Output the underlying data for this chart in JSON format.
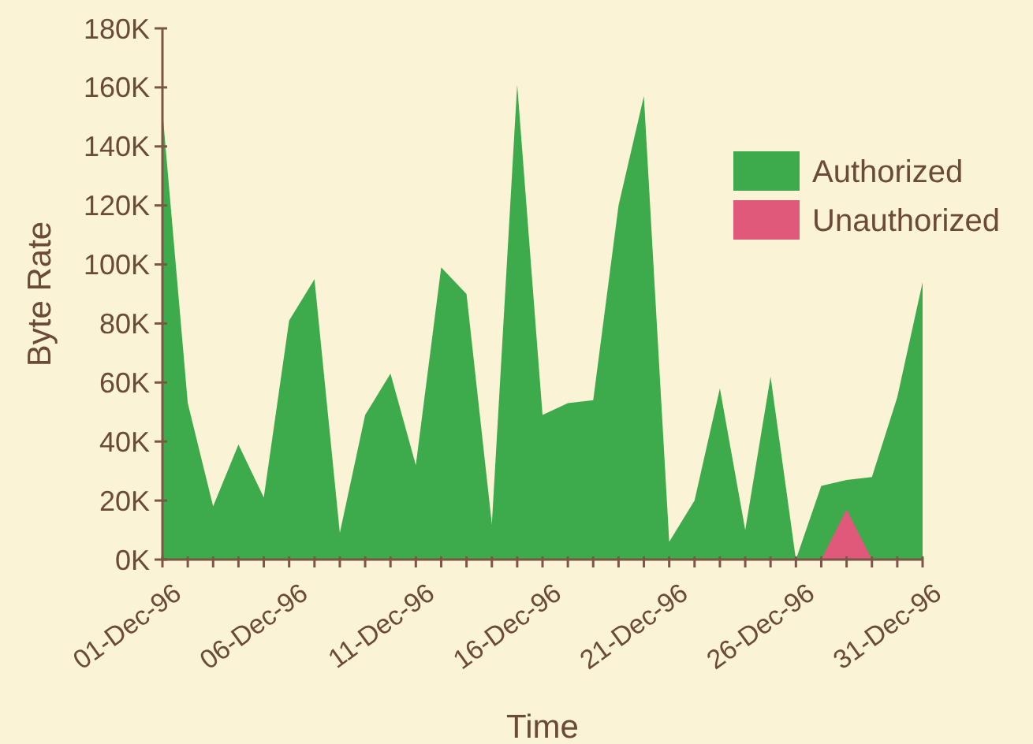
{
  "chart_data": {
    "type": "area",
    "xlabel": "Time",
    "ylabel": "Byte Rate",
    "legend": "top right",
    "x": [
      "1996-12-01",
      "1996-12-02",
      "1996-12-03",
      "1996-12-04",
      "1996-12-05",
      "1996-12-06",
      "1996-12-07",
      "1996-12-08",
      "1996-12-09",
      "1996-12-10",
      "1996-12-11",
      "1996-12-12",
      "1996-12-13",
      "1996-12-14",
      "1996-12-15",
      "1996-12-16",
      "1996-12-17",
      "1996-12-18",
      "1996-12-19",
      "1996-12-20",
      "1996-12-21",
      "1996-12-22",
      "1996-12-23",
      "1996-12-24",
      "1996-12-25",
      "1996-12-26",
      "1996-12-27",
      "1996-12-28",
      "1996-12-29",
      "1996-12-30",
      "1996-12-31"
    ],
    "series": [
      {
        "name": "Authorized",
        "color": "#3dab4b",
        "values": [
          152000,
          53000,
          18000,
          39000,
          21000,
          81000,
          95000,
          9000,
          49000,
          63000,
          32000,
          99000,
          90000,
          12000,
          161000,
          49000,
          53000,
          54000,
          120000,
          157000,
          6000,
          20000,
          58000,
          10000,
          62000,
          0,
          25000,
          27000,
          28000,
          55000,
          94000
        ]
      },
      {
        "name": "Unauthorized",
        "color": "#e0587a",
        "values": [
          0,
          0,
          0,
          0,
          0,
          0,
          0,
          0,
          0,
          0,
          0,
          0,
          0,
          0,
          0,
          0,
          0,
          0,
          0,
          0,
          0,
          0,
          0,
          0,
          0,
          0,
          0,
          17000,
          0,
          0,
          0
        ]
      }
    ],
    "xlim": [
      "1996-12-01",
      "1996-12-31"
    ],
    "xticks": [
      {
        "value": "1996-12-01",
        "label": "01-Dec-96"
      },
      {
        "value": "1996-12-02",
        "label": null
      },
      {
        "value": "1996-12-03",
        "label": null
      },
      {
        "value": "1996-12-04",
        "label": null
      },
      {
        "value": "1996-12-05",
        "label": null
      },
      {
        "value": "1996-12-06",
        "label": "06-Dec-96"
      },
      {
        "value": "1996-12-07",
        "label": null
      },
      {
        "value": "1996-12-08",
        "label": null
      },
      {
        "value": "1996-12-09",
        "label": null
      },
      {
        "value": "1996-12-10",
        "label": null
      },
      {
        "value": "1996-12-11",
        "label": "11-Dec-96"
      },
      {
        "value": "1996-12-12",
        "label": null
      },
      {
        "value": "1996-12-13",
        "label": null
      },
      {
        "value": "1996-12-14",
        "label": null
      },
      {
        "value": "1996-12-15",
        "label": null
      },
      {
        "value": "1996-12-16",
        "label": "16-Dec-96"
      },
      {
        "value": "1996-12-17",
        "label": null
      },
      {
        "value": "1996-12-18",
        "label": null
      },
      {
        "value": "1996-12-19",
        "label": null
      },
      {
        "value": "1996-12-20",
        "label": null
      },
      {
        "value": "1996-12-21",
        "label": "21-Dec-96"
      },
      {
        "value": "1996-12-22",
        "label": null
      },
      {
        "value": "1996-12-23",
        "label": null
      },
      {
        "value": "1996-12-24",
        "label": null
      },
      {
        "value": "1996-12-25",
        "label": null
      },
      {
        "value": "1996-12-26",
        "label": "26-Dec-96"
      },
      {
        "value": "1996-12-27",
        "label": null
      },
      {
        "value": "1996-12-28",
        "label": null
      },
      {
        "value": "1996-12-29",
        "label": null
      },
      {
        "value": "1996-12-30",
        "label": null
      },
      {
        "value": "1996-12-31",
        "label": "31-Dec-96"
      }
    ],
    "ylim": [
      0,
      180000
    ],
    "yticks": [
      {
        "value": 0,
        "label": "0K"
      },
      {
        "value": 20000,
        "label": "20K"
      },
      {
        "value": 40000,
        "label": "40K"
      },
      {
        "value": 60000,
        "label": "60K"
      },
      {
        "value": 80000,
        "label": "80K"
      },
      {
        "value": 100000,
        "label": "100K"
      },
      {
        "value": 120000,
        "label": "120K"
      },
      {
        "value": 140000,
        "label": "140K"
      },
      {
        "value": 160000,
        "label": "160K"
      },
      {
        "value": 180000,
        "label": "180K"
      }
    ]
  }
}
